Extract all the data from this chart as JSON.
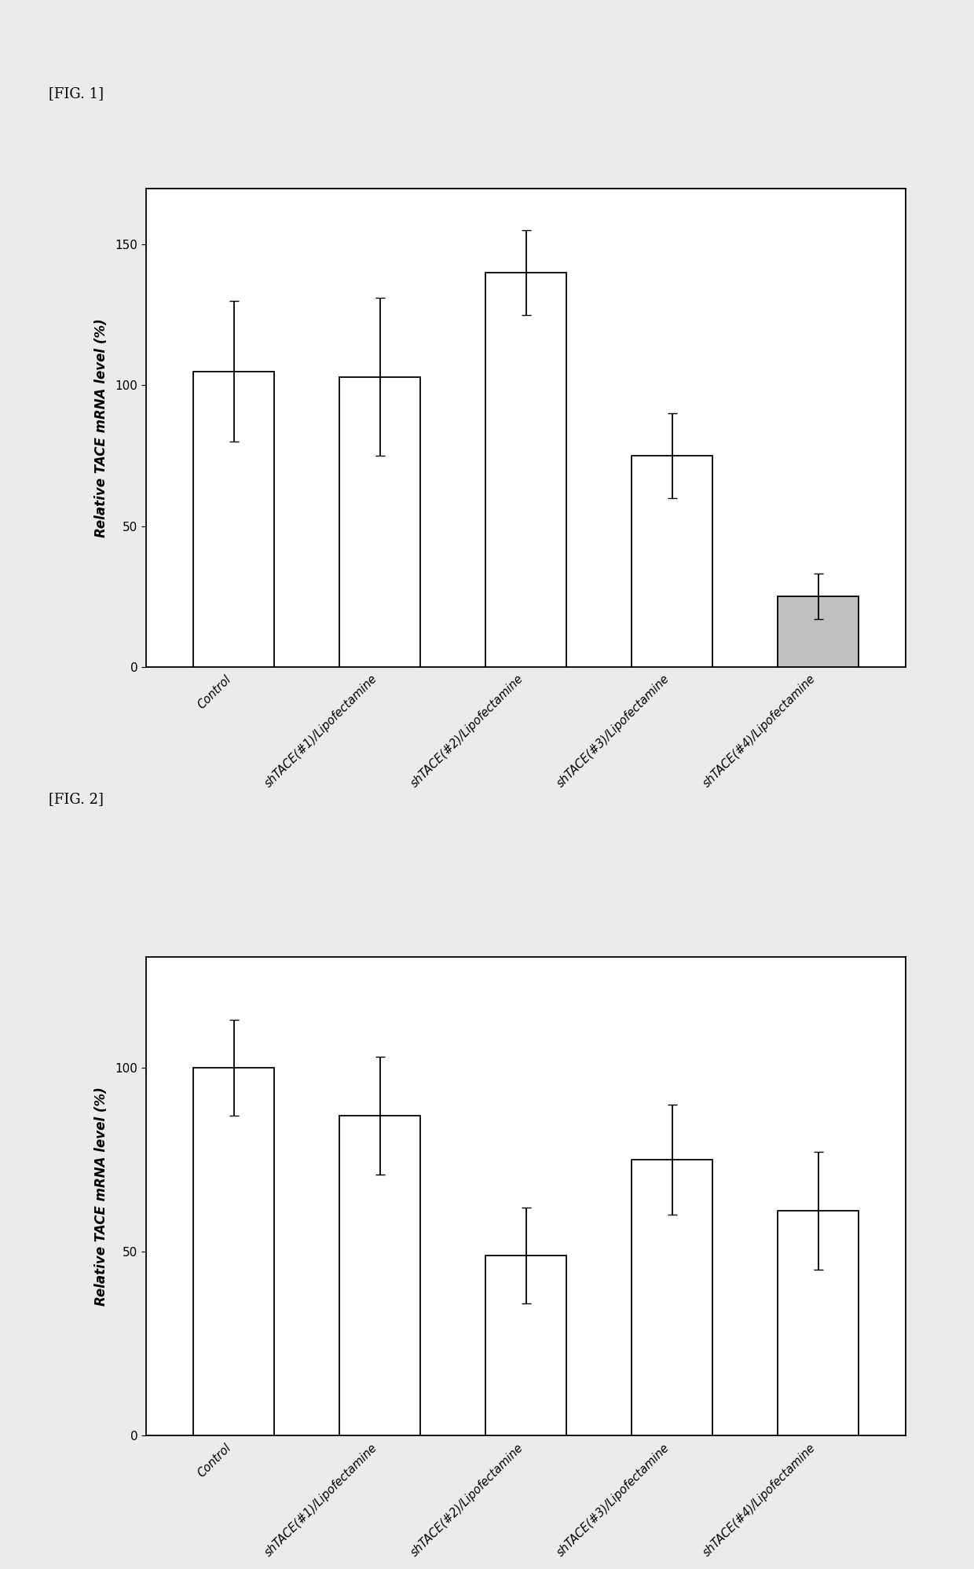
{
  "fig1": {
    "title": "[FIG. 1]",
    "ylabel": "Relative TACE mRNA level (%)",
    "ylim": [
      0,
      170
    ],
    "yticks": [
      0,
      50,
      100,
      150
    ],
    "categories": [
      "Control",
      "shTACE(#1)/Lipofectamine",
      "shTACE(#2)/Lipofectamine",
      "shTACE(#3)/Lipofectamine",
      "shTACE(#4)/Lipofectamine"
    ],
    "values": [
      105,
      103,
      140,
      75,
      25
    ],
    "errors": [
      25,
      28,
      15,
      15,
      8
    ],
    "bar_colors": [
      "#ffffff",
      "#ffffff",
      "#ffffff",
      "#ffffff",
      "#c0c0c0"
    ],
    "bar_edgecolor": "#000000"
  },
  "fig2": {
    "title": "[FIG. 2]",
    "ylabel": "Relative TACE mRNA level (%)",
    "ylim": [
      0,
      130
    ],
    "yticks": [
      0,
      50,
      100
    ],
    "categories": [
      "Control",
      "shTACE(#1)/Lipofectamine",
      "shTACE(#2)/Lipofectamine",
      "shTACE(#3)/Lipofectamine",
      "shTACE(#4)/Lipofectamine"
    ],
    "values": [
      100,
      87,
      49,
      75,
      61
    ],
    "errors": [
      13,
      16,
      13,
      15,
      16
    ],
    "bar_colors": [
      "#ffffff",
      "#ffffff",
      "#ffffff",
      "#ffffff",
      "#ffffff"
    ],
    "bar_edgecolor": "#000000"
  },
  "background_color": "#ebebeb",
  "label_fontsize": 12,
  "tick_fontsize": 11,
  "title_fontsize": 13,
  "xtick_fontsize": 10.5
}
